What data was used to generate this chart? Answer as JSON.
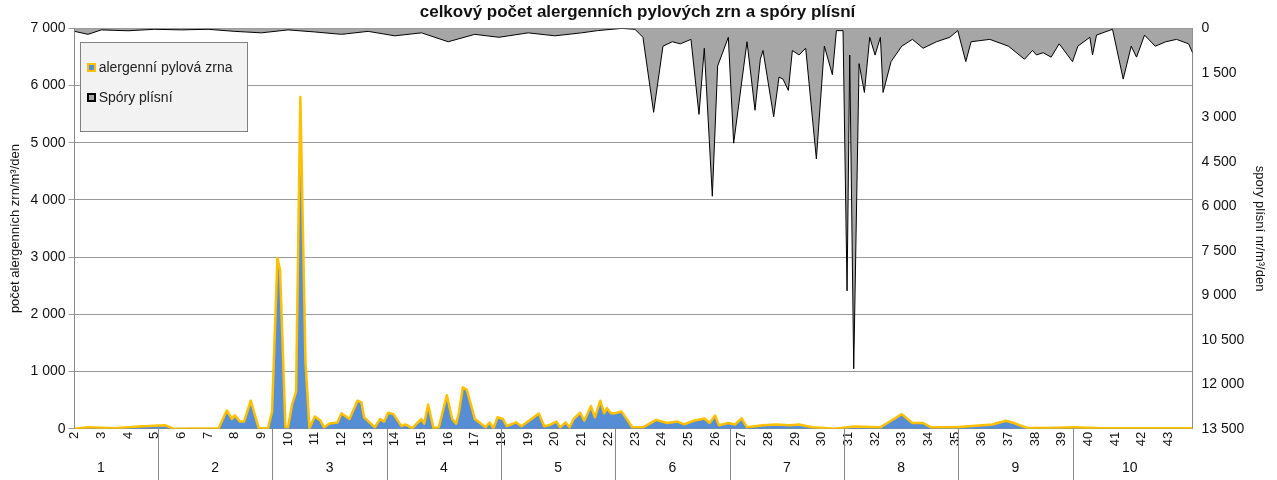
{
  "chart_data": {
    "type": "area",
    "title": "celkový počet alergenních pylových zrn a spóry plísní",
    "ylabel": "počet alergenních zrn/m³/den",
    "y2label": "spory plísní nr/m³/den",
    "xlim": [
      2,
      43.9
    ],
    "xticks": [
      2,
      3,
      4,
      5,
      6,
      7,
      8,
      9,
      10,
      11,
      12,
      13,
      14,
      15,
      16,
      17,
      18,
      19,
      20,
      21,
      22,
      23,
      24,
      25,
      26,
      27,
      28,
      29,
      30,
      31,
      32,
      33,
      34,
      35,
      36,
      37,
      38,
      39,
      40,
      41,
      42,
      43
    ],
    "x2lim": [
      0.77,
      10.55
    ],
    "x2ticks": [
      1,
      2,
      3,
      4,
      5,
      6,
      7,
      8,
      9,
      10
    ],
    "ylim": [
      0,
      7000
    ],
    "yticks": [
      0,
      {
        "value": 1000,
        "label": "1 000"
      },
      {
        "value": 2000,
        "label": "2 000"
      },
      {
        "value": 3000,
        "label": "3 000"
      },
      {
        "value": 4000,
        "label": "4 000"
      },
      {
        "value": 5000,
        "label": "5 000"
      },
      {
        "value": 6000,
        "label": "6 000"
      },
      {
        "value": 7000,
        "label": "7 000"
      }
    ],
    "y2lim": [
      13500,
      0
    ],
    "y2ticks": [
      0,
      {
        "value": 1500,
        "label": "1 500"
      },
      {
        "value": 3000,
        "label": "3 000"
      },
      {
        "value": 4500,
        "label": "4 500"
      },
      {
        "value": 6000,
        "label": "6 000"
      },
      {
        "value": 7500,
        "label": "7 500"
      },
      {
        "value": 9000,
        "label": "9 000"
      },
      {
        "value": 10500,
        "label": "10 500"
      },
      {
        "value": 12000,
        "label": "12 000"
      },
      {
        "value": 13500,
        "label": "13 500"
      }
    ],
    "grid": "y",
    "legend": "top left",
    "series": [
      {
        "name": "alergenní pylová zrna",
        "type": "area",
        "color": "#558ed5",
        "x": [
          2,
          2.5,
          3.5,
          4.4,
          5.4,
          5.7,
          7.4,
          7.7,
          7.9,
          8.0,
          8.2,
          8.35,
          8.6,
          8.9,
          9.25,
          9.4,
          9.6,
          9.7,
          9.9,
          10.0,
          10.15,
          10.3,
          10.46,
          10.65,
          10.8,
          11.0,
          11.2,
          11.35,
          11.55,
          11.85,
          12.0,
          12.3,
          12.6,
          12.75,
          12.85,
          13.25,
          13.45,
          13.6,
          13.75,
          13.95,
          14.25,
          14.4,
          14.65,
          15.0,
          15.1,
          15.25,
          15.45,
          15.65,
          15.95,
          16.15,
          16.3,
          16.4,
          16.55,
          16.7,
          17.0,
          17.4,
          17.55,
          17.7,
          17.85,
          18.05,
          18.2,
          18.55,
          18.75,
          19.4,
          19.6,
          19.8,
          20.05,
          20.2,
          20.4,
          20.55,
          20.7,
          20.95,
          21.1,
          21.35,
          21.5,
          21.7,
          21.85,
          21.95,
          22.1,
          22.25,
          22.5,
          22.9,
          23.3,
          23.8,
          24.2,
          24.6,
          24.85,
          25.2,
          25.6,
          25.8,
          26.0,
          26.15,
          26.5,
          26.75,
          27.0,
          27.2,
          27.8,
          28.3,
          28.8,
          29.15,
          29.65,
          30.5,
          31.2,
          32.2,
          32.6,
          33.0,
          33.4,
          33.8,
          34.1,
          35.0,
          36.4,
          36.9,
          37.2,
          37.7,
          38.4,
          39.5,
          40.5,
          42.2,
          43.9
        ],
        "values": [
          0,
          25,
          10,
          40,
          60,
          0,
          10,
          320,
          170,
          235,
          125,
          125,
          490,
          10,
          10,
          300,
          2985,
          2775,
          25,
          25,
          425,
          650,
          5800,
          1200,
          10,
          215,
          150,
          25,
          90,
          110,
          270,
          170,
          490,
          460,
          200,
          25,
          170,
          125,
          280,
          255,
          45,
          75,
          10,
          170,
          90,
          425,
          10,
          25,
          585,
          170,
          90,
          280,
          725,
          680,
          170,
          25,
          110,
          10,
          200,
          170,
          45,
          110,
          45,
          265,
          45,
          65,
          125,
          25,
          110,
          25,
          170,
          280,
          140,
          395,
          200,
          490,
          270,
          360,
          270,
          270,
          300,
          25,
          25,
          155,
          100,
          125,
          75,
          140,
          180,
          100,
          230,
          60,
          100,
          75,
          180,
          25,
          60,
          75,
          60,
          75,
          25,
          0,
          40,
          25,
          140,
          255,
          100,
          100,
          25,
          25,
          75,
          140,
          100,
          15,
          15,
          25,
          8,
          8,
          8
        ]
      },
      {
        "name": "Spóry plísní",
        "type": "area",
        "axis": "y2",
        "color": "#a6a6a6",
        "x": [
          2,
          2.5,
          3,
          4,
          5,
          6,
          7,
          8,
          9,
          10,
          11,
          12,
          13,
          14,
          15,
          16,
          17,
          17.9,
          19,
          20,
          21,
          21.6,
          22.5,
          23.0,
          23.3,
          23.7,
          24.05,
          24.4,
          24.7,
          25.1,
          25.4,
          25.6,
          25.9,
          26.1,
          26.5,
          26.7,
          27.2,
          27.5,
          27.7,
          27.8,
          28.2,
          28.4,
          28.55,
          28.75,
          28.9,
          29.15,
          29.4,
          29.8,
          30.1,
          30.4,
          30.55,
          30.8,
          30.95,
          31.05,
          31.2,
          31.4,
          31.6,
          31.8,
          32.0,
          32.2,
          32.3,
          32.6,
          33.0,
          33.4,
          33.8,
          34.3,
          34.8,
          35.1,
          35.4,
          35.6,
          36.3,
          37.0,
          37.6,
          37.9,
          38.05,
          38.3,
          38.6,
          38.9,
          39.4,
          39.6,
          40.05,
          40.15,
          40.3,
          40.9,
          41.3,
          41.6,
          41.8,
          42.1,
          42.5,
          42.9,
          43.3,
          43.75,
          43.9
        ],
        "values": [
          100,
          200,
          50,
          80,
          30,
          50,
          30,
          100,
          150,
          50,
          120,
          200,
          100,
          250,
          150,
          450,
          200,
          300,
          150,
          250,
          150,
          75,
          0,
          30,
          300,
          2830,
          600,
          450,
          520,
          370,
          2900,
          670,
          5660,
          1270,
          300,
          3870,
          450,
          2760,
          1040,
          745,
          2980,
          1640,
          1710,
          2090,
          745,
          895,
          670,
          4400,
          600,
          1560,
          75,
          75,
          8850,
          900,
          11480,
          1190,
          2160,
          300,
          900,
          300,
          2160,
          1120,
          600,
          370,
          670,
          450,
          300,
          75,
          1120,
          450,
          370,
          600,
          1040,
          745,
          895,
          820,
          970,
          520,
          1120,
          600,
          300,
          895,
          225,
          30,
          1710,
          600,
          970,
          225,
          600,
          450,
          370,
          520,
          820
        ]
      }
    ]
  }
}
